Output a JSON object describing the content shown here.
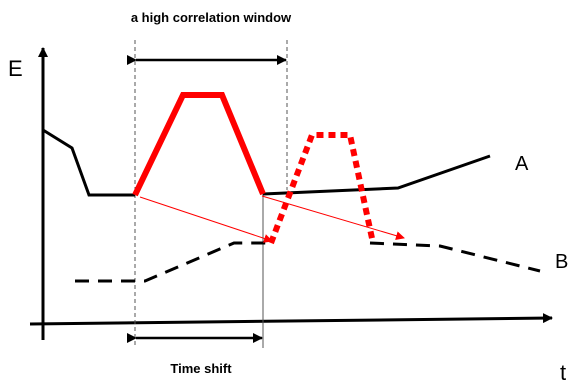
{
  "diagram": {
    "top_label": "a high correlation window",
    "bottom_label": "Time shift",
    "y_axis_label": "E",
    "x_axis_label": "t",
    "curve_a_label": "A",
    "curve_b_label": "B"
  },
  "colors": {
    "curve": "#000000",
    "highlight": "#ff0000",
    "guide": "#555555"
  }
}
